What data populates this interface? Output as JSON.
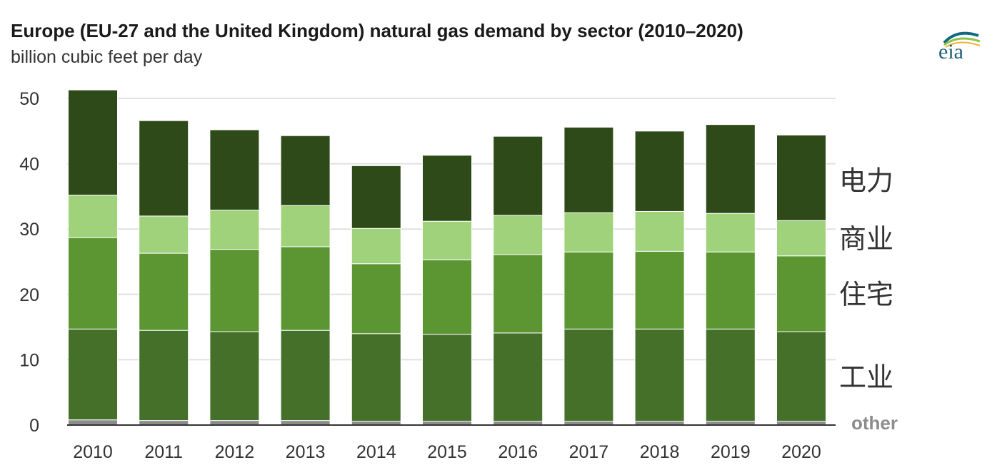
{
  "title": "Europe (EU-27 and the United Kingdom) natural gas demand by sector (2010–2020)",
  "subtitle": "billion cubic feet per day",
  "logo_text": "eia",
  "colors": {
    "other": "#8c8c8c",
    "industrial": "#45702a",
    "residential": "#5c9632",
    "commercial": "#9fd27a",
    "electric": "#2e4a18",
    "grid": "#e0e0e0",
    "axis": "#333333",
    "other_label": "#8c8c8c",
    "cjk_label": "#333333"
  },
  "chart_data": {
    "type": "bar",
    "stacked": true,
    "categories": [
      "2010",
      "2011",
      "2012",
      "2013",
      "2014",
      "2015",
      "2016",
      "2017",
      "2018",
      "2019",
      "2020"
    ],
    "series": [
      {
        "key": "other",
        "name": "other",
        "values": [
          0.8,
          0.7,
          0.7,
          0.7,
          0.6,
          0.6,
          0.6,
          0.6,
          0.6,
          0.6,
          0.6
        ]
      },
      {
        "key": "industrial",
        "name": "工业",
        "values": [
          13.9,
          13.8,
          13.6,
          13.8,
          13.4,
          13.3,
          13.5,
          14.1,
          14.1,
          14.1,
          13.7
        ]
      },
      {
        "key": "residential",
        "name": "住宅",
        "values": [
          14.0,
          11.8,
          12.6,
          12.8,
          10.7,
          11.4,
          12.0,
          11.8,
          11.9,
          11.8,
          11.6
        ]
      },
      {
        "key": "commercial",
        "name": "商业",
        "values": [
          6.5,
          5.7,
          6.0,
          6.3,
          5.4,
          5.9,
          6.0,
          6.0,
          6.1,
          5.9,
          5.4
        ]
      },
      {
        "key": "electric",
        "name": "电力",
        "values": [
          16.1,
          14.6,
          12.3,
          10.7,
          9.6,
          10.1,
          12.1,
          13.1,
          12.3,
          13.6,
          13.1
        ]
      }
    ],
    "ylim": [
      0,
      50
    ],
    "yticks": [
      0,
      10,
      20,
      30,
      40,
      50
    ],
    "grid": true,
    "legend": "right, inline labels"
  }
}
